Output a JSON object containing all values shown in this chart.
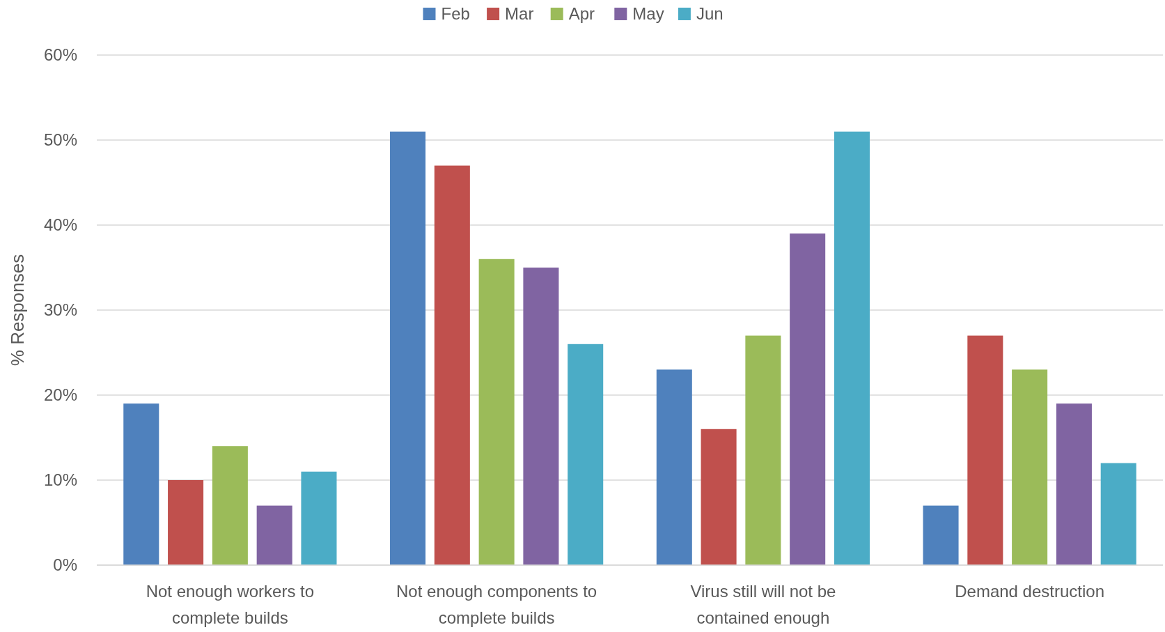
{
  "chart_data": {
    "type": "bar",
    "ylabel": "% Responses",
    "categories": [
      "Not enough workers to complete builds",
      "Not enough components to complete builds",
      "Virus still will not be contained enough",
      "Demand destruction"
    ],
    "series": [
      {
        "name": "Feb",
        "color": "#4f81bd",
        "values": [
          19,
          51,
          23,
          7
        ]
      },
      {
        "name": "Mar",
        "color": "#c0504d",
        "values": [
          10,
          47,
          16,
          27
        ]
      },
      {
        "name": "Apr",
        "color": "#9bbb59",
        "values": [
          14,
          36,
          27,
          23
        ]
      },
      {
        "name": "May",
        "color": "#8064a2",
        "values": [
          7,
          35,
          39,
          19
        ]
      },
      {
        "name": "Jun",
        "color": "#4bacc6",
        "values": [
          11,
          26,
          51,
          12
        ]
      }
    ],
    "ylim": [
      0,
      60
    ],
    "yticks": [
      {
        "value": 0,
        "label": "0%"
      },
      {
        "value": 10,
        "label": "10%"
      },
      {
        "value": 20,
        "label": "20%"
      },
      {
        "value": 30,
        "label": "30%"
      },
      {
        "value": 40,
        "label": "40%"
      },
      {
        "value": 50,
        "label": "50%"
      },
      {
        "value": 60,
        "label": "60%"
      }
    ],
    "grid": "y",
    "legend": "top"
  }
}
